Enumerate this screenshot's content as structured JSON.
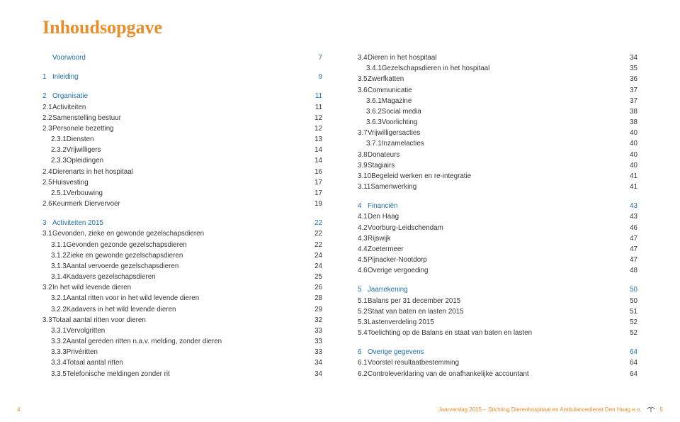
{
  "title": "Inhoudsopgave",
  "colors": {
    "accent": "#e98c2a",
    "blue": "#1f6fa8",
    "text": "#333333",
    "bg": "#ffffff"
  },
  "typography": {
    "title_fontsize": 26,
    "body_fontsize": 9.8,
    "title_family": "Georgia",
    "body_family": "Arial"
  },
  "footer": {
    "left_page": "4",
    "src": "Jaarverslag 2015 – Stichting Dierenhospitaal en Ambulancedienst Den Haag e.o.",
    "right_page": "5"
  },
  "left": [
    {
      "n": "",
      "t": "Voorwoord",
      "p": "7",
      "blue": true,
      "ind": 1
    },
    {
      "spacer": true
    },
    {
      "n": "1",
      "t": "Inleiding",
      "p": "9",
      "blue": true,
      "ind": 1
    },
    {
      "spacer": true
    },
    {
      "n": "2",
      "t": "Organisatie",
      "p": "11",
      "blue": true,
      "ind": 1
    },
    {
      "n": "2.1",
      "t": "Activiteiten",
      "p": "11",
      "ind": 1
    },
    {
      "n": "2.2",
      "t": "Samenstelling bestuur",
      "p": "12",
      "ind": 1
    },
    {
      "n": "2.3",
      "t": "Personele bezetting",
      "p": "12",
      "ind": 1
    },
    {
      "n": "2.3.1",
      "t": "Diensten",
      "p": "13",
      "ind": 2
    },
    {
      "n": "2.3.2",
      "t": "Vrijwilligers",
      "p": "14",
      "ind": 2
    },
    {
      "n": "2.3.3",
      "t": "Opleidingen",
      "p": "14",
      "ind": 2
    },
    {
      "n": "2.4",
      "t": "Dierenarts in het hospitaal",
      "p": "16",
      "ind": 1
    },
    {
      "n": "2.5",
      "t": "Huisvesting",
      "p": "17",
      "ind": 1
    },
    {
      "n": "2.5.1",
      "t": "Verbouwing",
      "p": "17",
      "ind": 2
    },
    {
      "n": "2.6",
      "t": "Keurmerk Diervervoer",
      "p": "19",
      "ind": 1
    },
    {
      "spacer": true
    },
    {
      "n": "3",
      "t": "Activiteiten 2015",
      "p": "22",
      "blue": true,
      "ind": 1
    },
    {
      "n": "3.1",
      "t": "Gevonden, zieke en gewonde gezelschapsdieren",
      "p": "22",
      "ind": 1
    },
    {
      "n": "3.1.1",
      "t": "Gevonden gezonde gezelschapsdieren",
      "p": "22",
      "ind": 2
    },
    {
      "n": "3.1.2",
      "t": "Zieke en gewonde gezelschapsdieren",
      "p": "24",
      "ind": 2
    },
    {
      "n": "3.1.3",
      "t": "Aantal vervoerde gezelschapsdieren",
      "p": "24",
      "ind": 2
    },
    {
      "n": "3.1.4",
      "t": "Kadavers gezelschapsdieren",
      "p": "25",
      "ind": 2
    },
    {
      "n": "3.2",
      "t": "In het wild levende dieren",
      "p": "26",
      "ind": 1
    },
    {
      "n": "3.2.1",
      "t": "Aantal ritten voor in het wild levende dieren",
      "p": "28",
      "ind": 2
    },
    {
      "n": "3.2.2",
      "t": "Kadavers in het wild levende dieren",
      "p": "29",
      "ind": 2
    },
    {
      "n": "3.3",
      "t": "Totaal aantal ritten voor dieren",
      "p": "32",
      "ind": 1
    },
    {
      "n": "3.3.1",
      "t": "Vervolgritten",
      "p": "33",
      "ind": 2
    },
    {
      "n": "3.3.2",
      "t": "Aantal gereden ritten n.a.v. melding, zonder dieren",
      "p": "33",
      "ind": 2
    },
    {
      "n": "3.3.3",
      "t": "Privéritten",
      "p": "33",
      "ind": 2
    },
    {
      "n": "3.3.4",
      "t": "Totaal aantal ritten",
      "p": "34",
      "ind": 2
    },
    {
      "n": "3.3.5",
      "t": "Telefonische meldingen zonder rit",
      "p": "34",
      "ind": 2
    }
  ],
  "right": [
    {
      "n": "3.4",
      "t": "Dieren in het hospitaal",
      "p": "34",
      "ind": 1
    },
    {
      "n": "3.4.1",
      "t": "Gezelschapsdieren in het hospitaal",
      "p": "35",
      "ind": 2
    },
    {
      "n": "3.5",
      "t": "Zwerfkatten",
      "p": "36",
      "ind": 1
    },
    {
      "n": "3.6",
      "t": "Communicatie",
      "p": "37",
      "ind": 1
    },
    {
      "n": "3.6.1",
      "t": "Magazine",
      "p": "37",
      "ind": 2
    },
    {
      "n": "3.6.2",
      "t": "Social media",
      "p": "38",
      "ind": 2
    },
    {
      "n": "3.6.3",
      "t": "Voorlichting",
      "p": "38",
      "ind": 2
    },
    {
      "n": "3.7",
      "t": "Vrijwilligersacties",
      "p": "40",
      "ind": 1
    },
    {
      "n": "3.7.1",
      "t": "Inzamelacties",
      "p": "40",
      "ind": 2
    },
    {
      "n": "3.8",
      "t": "Donateurs",
      "p": "40",
      "ind": 1
    },
    {
      "n": "3.9",
      "t": "Stagiairs",
      "p": "40",
      "ind": 1
    },
    {
      "n": "3.10",
      "t": "Begeleid werken en re-integratie",
      "p": "41",
      "ind": 1
    },
    {
      "n": "3.11",
      "t": "Samenwerking",
      "p": "41",
      "ind": 1
    },
    {
      "spacer": true
    },
    {
      "n": "4",
      "t": "Financiën",
      "p": "43",
      "blue": true,
      "ind": 1
    },
    {
      "n": "4.1",
      "t": "Den Haag",
      "p": "43",
      "ind": 1
    },
    {
      "n": "4.2",
      "t": "Voorburg-Leidschendam",
      "p": "46",
      "ind": 1
    },
    {
      "n": "4.3",
      "t": "Rijswijk",
      "p": "47",
      "ind": 1
    },
    {
      "n": "4.4",
      "t": "Zoetermeer",
      "p": "47",
      "ind": 1
    },
    {
      "n": "4.5",
      "t": "Pijnacker-Nootdorp",
      "p": "47",
      "ind": 1
    },
    {
      "n": "4.6",
      "t": "Overige vergoeding",
      "p": "48",
      "ind": 1
    },
    {
      "spacer": true
    },
    {
      "n": "5",
      "t": "Jaarrekening",
      "p": "50",
      "blue": true,
      "ind": 1
    },
    {
      "n": "5.1",
      "t": "Balans per 31 december 2015",
      "p": "50",
      "ind": 1
    },
    {
      "n": "5.2",
      "t": "Staat van baten en lasten 2015",
      "p": "51",
      "ind": 1
    },
    {
      "n": "5.3",
      "t": "Lastenverdeling 2015",
      "p": "52",
      "ind": 1
    },
    {
      "n": "5.4",
      "t": "Toelichting op de Balans en staat van baten en lasten",
      "p": "52",
      "ind": 1
    },
    {
      "spacer": true
    },
    {
      "n": "6",
      "t": "Overige gegevens",
      "p": "64",
      "blue": true,
      "ind": 1
    },
    {
      "n": "6.1",
      "t": "Voorstel resultaatbestemming",
      "p": "64",
      "ind": 1
    },
    {
      "n": "6.2",
      "t": "Controleverklaring van de onafhankelijke accountant",
      "p": "64",
      "ind": 1
    }
  ]
}
